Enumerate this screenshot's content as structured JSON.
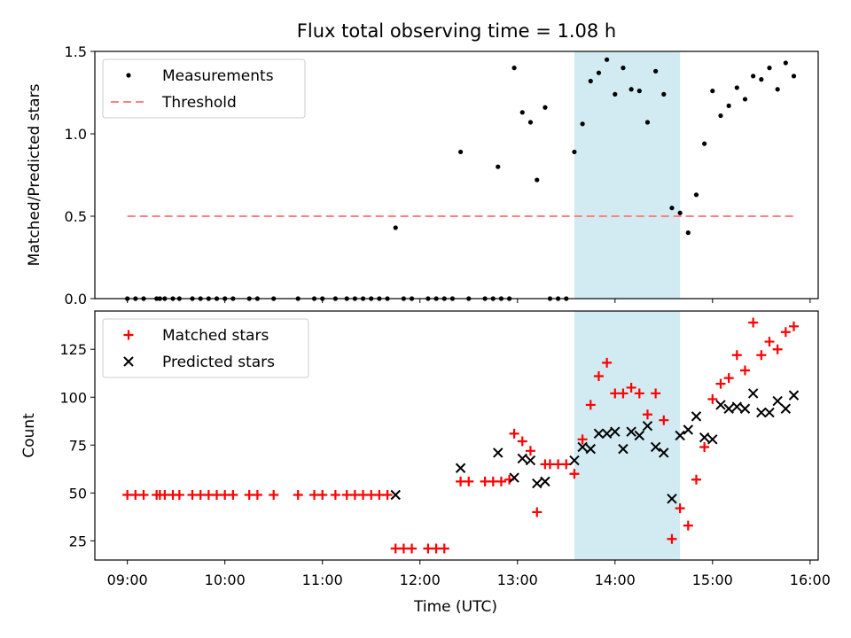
{
  "figure": {
    "title": "Flux total observing time = 1.08 h",
    "xlabel": "Time (UTC)"
  },
  "chart_data": [
    {
      "type": "scatter",
      "panel": "top",
      "title": "Flux total observing time = 1.08 h",
      "xlabel": "",
      "ylabel": "Matched/Predicted stars",
      "x_unit": "time (UTC), HH:MM",
      "xlim": [
        "08:40",
        "16:05"
      ],
      "ylim": [
        0,
        1.5
      ],
      "xticks": [
        "09:00",
        "10:00",
        "11:00",
        "12:00",
        "13:00",
        "14:00",
        "15:00",
        "16:00"
      ],
      "yticks": [
        {
          "value": 0,
          "label": "0.0"
        },
        {
          "value": 0.5,
          "label": "0.5"
        },
        {
          "value": 1.0,
          "label": "1.0"
        },
        {
          "value": 1.5,
          "label": "1.5"
        }
      ],
      "grid": false,
      "legend": {
        "position": "top-left"
      },
      "highlight_span": {
        "x": [
          "13:35",
          "14:40"
        ],
        "color": "#add8e6"
      },
      "series": [
        {
          "name": "Measurements",
          "marker": "dot",
          "color": "#000000",
          "points": [
            {
              "x": "09:00",
              "y": 0
            },
            {
              "x": "09:05",
              "y": 0
            },
            {
              "x": "09:10",
              "y": 0
            },
            {
              "x": "09:18",
              "y": 0
            },
            {
              "x": "09:20",
              "y": 0
            },
            {
              "x": "09:23",
              "y": 0
            },
            {
              "x": "09:28",
              "y": 0
            },
            {
              "x": "09:32",
              "y": 0
            },
            {
              "x": "09:40",
              "y": 0
            },
            {
              "x": "09:45",
              "y": 0
            },
            {
              "x": "09:50",
              "y": 0
            },
            {
              "x": "09:55",
              "y": 0
            },
            {
              "x": "10:00",
              "y": 0
            },
            {
              "x": "10:05",
              "y": 0
            },
            {
              "x": "10:15",
              "y": 0
            },
            {
              "x": "10:20",
              "y": 0
            },
            {
              "x": "10:30",
              "y": 0
            },
            {
              "x": "10:45",
              "y": 0
            },
            {
              "x": "10:55",
              "y": 0
            },
            {
              "x": "11:00",
              "y": 0
            },
            {
              "x": "11:08",
              "y": 0
            },
            {
              "x": "11:15",
              "y": 0
            },
            {
              "x": "11:20",
              "y": 0
            },
            {
              "x": "11:25",
              "y": 0
            },
            {
              "x": "11:30",
              "y": 0
            },
            {
              "x": "11:35",
              "y": 0
            },
            {
              "x": "11:40",
              "y": 0
            },
            {
              "x": "11:45",
              "y": 0.43
            },
            {
              "x": "11:50",
              "y": 0
            },
            {
              "x": "11:55",
              "y": 0
            },
            {
              "x": "12:05",
              "y": 0
            },
            {
              "x": "12:10",
              "y": 0
            },
            {
              "x": "12:15",
              "y": 0
            },
            {
              "x": "12:20",
              "y": 0
            },
            {
              "x": "12:25",
              "y": 0.89
            },
            {
              "x": "12:30",
              "y": 0
            },
            {
              "x": "12:40",
              "y": 0
            },
            {
              "x": "12:45",
              "y": 0
            },
            {
              "x": "12:48",
              "y": 0.8
            },
            {
              "x": "12:50",
              "y": 0
            },
            {
              "x": "12:55",
              "y": 0
            },
            {
              "x": "12:58",
              "y": 1.4
            },
            {
              "x": "13:03",
              "y": 1.13
            },
            {
              "x": "13:08",
              "y": 1.07
            },
            {
              "x": "13:12",
              "y": 0.72
            },
            {
              "x": "13:17",
              "y": 1.16
            },
            {
              "x": "13:20",
              "y": 0
            },
            {
              "x": "13:25",
              "y": 0
            },
            {
              "x": "13:30",
              "y": 0
            },
            {
              "x": "13:35",
              "y": 0.89
            },
            {
              "x": "13:40",
              "y": 1.06
            },
            {
              "x": "13:45",
              "y": 1.32
            },
            {
              "x": "13:50",
              "y": 1.37
            },
            {
              "x": "13:55",
              "y": 1.45
            },
            {
              "x": "14:00",
              "y": 1.24
            },
            {
              "x": "14:05",
              "y": 1.4
            },
            {
              "x": "14:10",
              "y": 1.27
            },
            {
              "x": "14:15",
              "y": 1.26
            },
            {
              "x": "14:20",
              "y": 1.07
            },
            {
              "x": "14:25",
              "y": 1.38
            },
            {
              "x": "14:30",
              "y": 1.24
            },
            {
              "x": "14:35",
              "y": 0.55
            },
            {
              "x": "14:40",
              "y": 0.52
            },
            {
              "x": "14:45",
              "y": 0.4
            },
            {
              "x": "14:50",
              "y": 0.63
            },
            {
              "x": "14:55",
              "y": 0.94
            },
            {
              "x": "15:00",
              "y": 1.26
            },
            {
              "x": "15:05",
              "y": 1.11
            },
            {
              "x": "15:10",
              "y": 1.17
            },
            {
              "x": "15:15",
              "y": 1.28
            },
            {
              "x": "15:20",
              "y": 1.21
            },
            {
              "x": "15:25",
              "y": 1.35
            },
            {
              "x": "15:30",
              "y": 1.33
            },
            {
              "x": "15:35",
              "y": 1.4
            },
            {
              "x": "15:40",
              "y": 1.27
            },
            {
              "x": "15:45",
              "y": 1.43
            },
            {
              "x": "15:50",
              "y": 1.35
            }
          ]
        },
        {
          "name": "Threshold",
          "type": "line",
          "style": "dashed",
          "color": "#ff8080",
          "points": [
            {
              "x": "09:00",
              "y": 0.5
            },
            {
              "x": "15:50",
              "y": 0.5
            }
          ]
        }
      ]
    },
    {
      "type": "scatter",
      "panel": "bottom",
      "title": "",
      "xlabel": "Time (UTC)",
      "ylabel": "Count",
      "x_unit": "time (UTC), HH:MM",
      "xlim": [
        "08:40",
        "16:05"
      ],
      "ylim": [
        15,
        145
      ],
      "xticks": [
        "09:00",
        "10:00",
        "11:00",
        "12:00",
        "13:00",
        "14:00",
        "15:00",
        "16:00"
      ],
      "yticks": [
        {
          "value": 25,
          "label": "25"
        },
        {
          "value": 50,
          "label": "50"
        },
        {
          "value": 75,
          "label": "75"
        },
        {
          "value": 100,
          "label": "100"
        },
        {
          "value": 125,
          "label": "125"
        }
      ],
      "grid": false,
      "legend": {
        "position": "top-left"
      },
      "highlight_span": {
        "x": [
          "13:35",
          "14:40"
        ],
        "color": "#add8e6"
      },
      "series": [
        {
          "name": "Matched stars",
          "marker": "plus",
          "color": "#ff0000",
          "points": [
            {
              "x": "09:00",
              "y": 49
            },
            {
              "x": "09:05",
              "y": 49
            },
            {
              "x": "09:10",
              "y": 49
            },
            {
              "x": "09:18",
              "y": 49
            },
            {
              "x": "09:20",
              "y": 49
            },
            {
              "x": "09:23",
              "y": 49
            },
            {
              "x": "09:28",
              "y": 49
            },
            {
              "x": "09:32",
              "y": 49
            },
            {
              "x": "09:40",
              "y": 49
            },
            {
              "x": "09:45",
              "y": 49
            },
            {
              "x": "09:50",
              "y": 49
            },
            {
              "x": "09:55",
              "y": 49
            },
            {
              "x": "10:00",
              "y": 49
            },
            {
              "x": "10:05",
              "y": 49
            },
            {
              "x": "10:15",
              "y": 49
            },
            {
              "x": "10:20",
              "y": 49
            },
            {
              "x": "10:30",
              "y": 49
            },
            {
              "x": "10:45",
              "y": 49
            },
            {
              "x": "10:55",
              "y": 49
            },
            {
              "x": "11:00",
              "y": 49
            },
            {
              "x": "11:08",
              "y": 49
            },
            {
              "x": "11:15",
              "y": 49
            },
            {
              "x": "11:20",
              "y": 49
            },
            {
              "x": "11:25",
              "y": 49
            },
            {
              "x": "11:30",
              "y": 49
            },
            {
              "x": "11:35",
              "y": 49
            },
            {
              "x": "11:40",
              "y": 49
            },
            {
              "x": "11:45",
              "y": 21
            },
            {
              "x": "11:50",
              "y": 21
            },
            {
              "x": "11:55",
              "y": 21
            },
            {
              "x": "12:05",
              "y": 21
            },
            {
              "x": "12:10",
              "y": 21
            },
            {
              "x": "12:15",
              "y": 21
            },
            {
              "x": "12:25",
              "y": 56
            },
            {
              "x": "12:30",
              "y": 56
            },
            {
              "x": "12:40",
              "y": 56
            },
            {
              "x": "12:45",
              "y": 56
            },
            {
              "x": "12:50",
              "y": 56
            },
            {
              "x": "12:55",
              "y": 57
            },
            {
              "x": "12:58",
              "y": 81
            },
            {
              "x": "13:03",
              "y": 77
            },
            {
              "x": "13:08",
              "y": 72
            },
            {
              "x": "13:12",
              "y": 40
            },
            {
              "x": "13:17",
              "y": 65
            },
            {
              "x": "13:20",
              "y": 65
            },
            {
              "x": "13:25",
              "y": 65
            },
            {
              "x": "13:30",
              "y": 65
            },
            {
              "x": "13:35",
              "y": 60
            },
            {
              "x": "13:40",
              "y": 78
            },
            {
              "x": "13:45",
              "y": 96
            },
            {
              "x": "13:50",
              "y": 111
            },
            {
              "x": "13:55",
              "y": 118
            },
            {
              "x": "14:00",
              "y": 102
            },
            {
              "x": "14:05",
              "y": 102
            },
            {
              "x": "14:10",
              "y": 105
            },
            {
              "x": "14:15",
              "y": 102
            },
            {
              "x": "14:20",
              "y": 91
            },
            {
              "x": "14:25",
              "y": 102
            },
            {
              "x": "14:30",
              "y": 88
            },
            {
              "x": "14:35",
              "y": 26
            },
            {
              "x": "14:40",
              "y": 42
            },
            {
              "x": "14:45",
              "y": 33
            },
            {
              "x": "14:50",
              "y": 57
            },
            {
              "x": "14:55",
              "y": 74
            },
            {
              "x": "15:00",
              "y": 99
            },
            {
              "x": "15:05",
              "y": 107
            },
            {
              "x": "15:10",
              "y": 110
            },
            {
              "x": "15:15",
              "y": 122
            },
            {
              "x": "15:20",
              "y": 114
            },
            {
              "x": "15:25",
              "y": 139
            },
            {
              "x": "15:30",
              "y": 122
            },
            {
              "x": "15:35",
              "y": 129
            },
            {
              "x": "15:40",
              "y": 125
            },
            {
              "x": "15:45",
              "y": 134
            },
            {
              "x": "15:50",
              "y": 137
            }
          ]
        },
        {
          "name": "Predicted stars",
          "marker": "x",
          "color": "#000000",
          "points": [
            {
              "x": "11:45",
              "y": 49
            },
            {
              "x": "12:25",
              "y": 63
            },
            {
              "x": "12:48",
              "y": 71
            },
            {
              "x": "12:58",
              "y": 58
            },
            {
              "x": "13:03",
              "y": 68
            },
            {
              "x": "13:08",
              "y": 67
            },
            {
              "x": "13:12",
              "y": 55
            },
            {
              "x": "13:17",
              "y": 56
            },
            {
              "x": "13:35",
              "y": 67
            },
            {
              "x": "13:40",
              "y": 74
            },
            {
              "x": "13:45",
              "y": 73
            },
            {
              "x": "13:50",
              "y": 81
            },
            {
              "x": "13:55",
              "y": 81
            },
            {
              "x": "14:00",
              "y": 82
            },
            {
              "x": "14:05",
              "y": 73
            },
            {
              "x": "14:10",
              "y": 82
            },
            {
              "x": "14:15",
              "y": 80
            },
            {
              "x": "14:20",
              "y": 85
            },
            {
              "x": "14:25",
              "y": 74
            },
            {
              "x": "14:30",
              "y": 71
            },
            {
              "x": "14:35",
              "y": 47
            },
            {
              "x": "14:40",
              "y": 80
            },
            {
              "x": "14:45",
              "y": 83
            },
            {
              "x": "14:50",
              "y": 90
            },
            {
              "x": "14:55",
              "y": 79
            },
            {
              "x": "15:00",
              "y": 78
            },
            {
              "x": "15:05",
              "y": 96
            },
            {
              "x": "15:10",
              "y": 94
            },
            {
              "x": "15:15",
              "y": 95
            },
            {
              "x": "15:20",
              "y": 94
            },
            {
              "x": "15:25",
              "y": 102
            },
            {
              "x": "15:30",
              "y": 92
            },
            {
              "x": "15:35",
              "y": 92
            },
            {
              "x": "15:40",
              "y": 98
            },
            {
              "x": "15:45",
              "y": 94
            },
            {
              "x": "15:50",
              "y": 101
            }
          ]
        }
      ]
    }
  ]
}
